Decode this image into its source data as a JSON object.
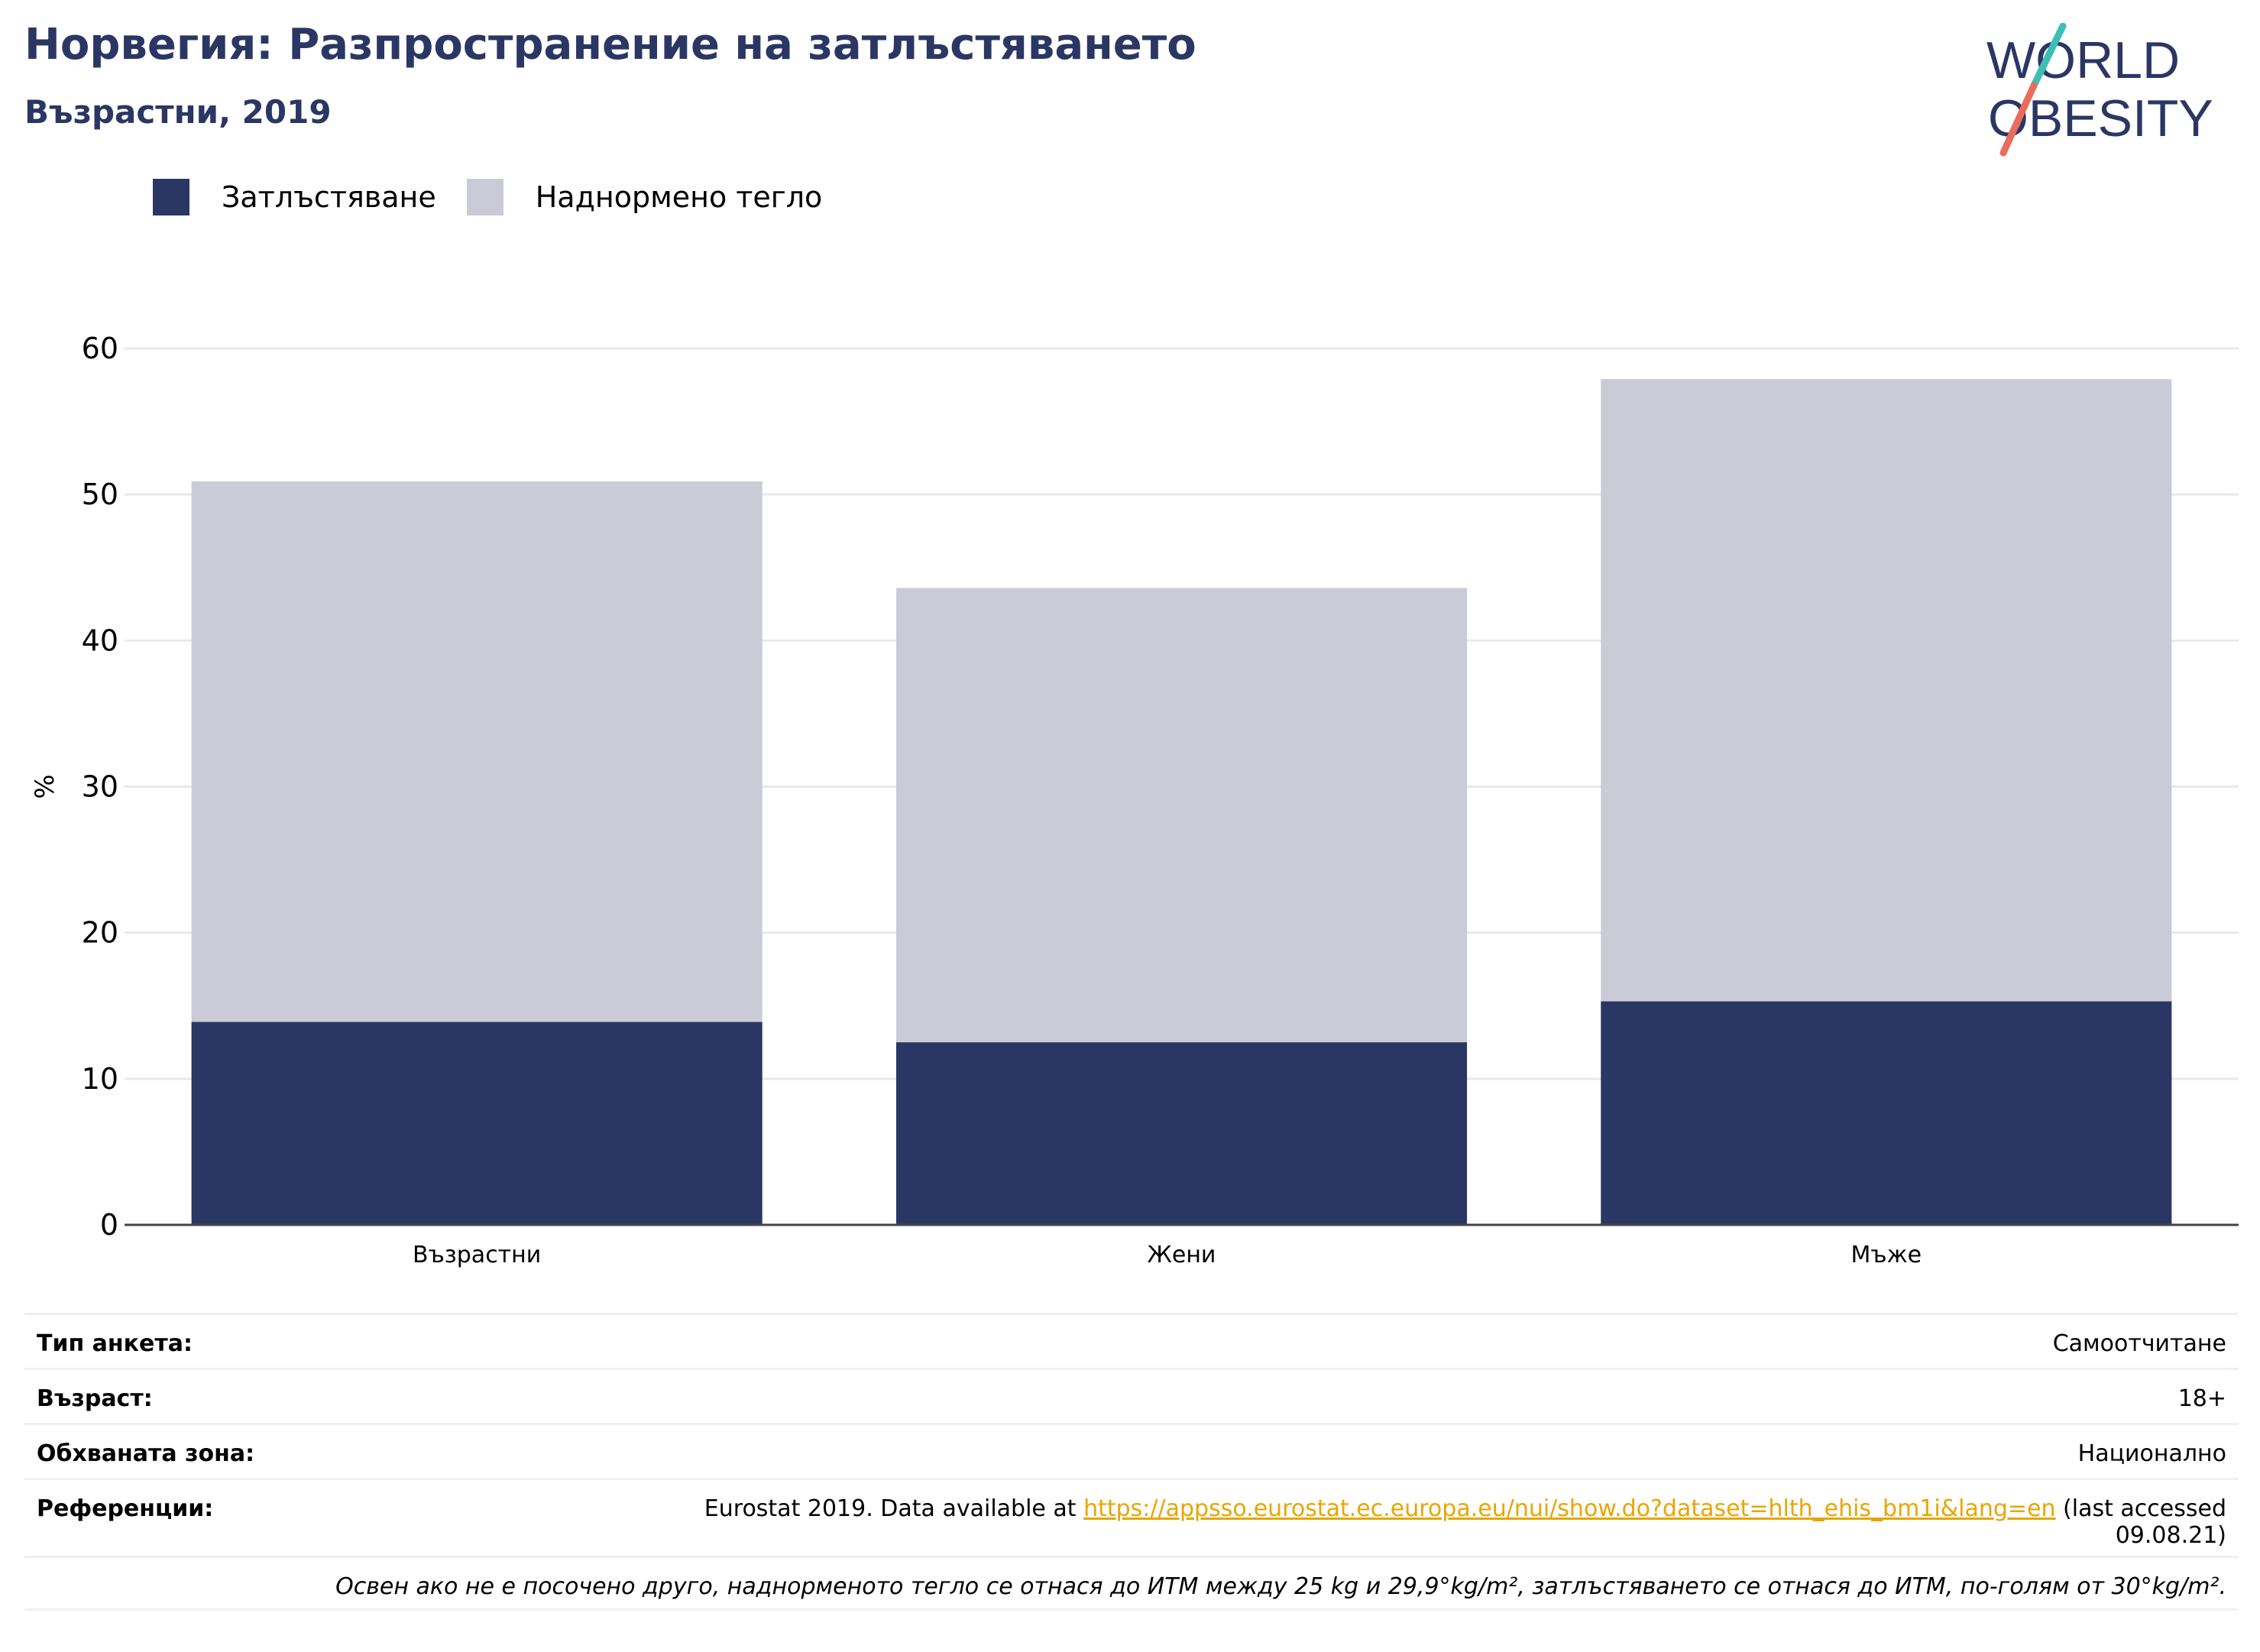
{
  "header": {
    "title": "Норвегия: Разпространение на затлъстяването",
    "subtitle": "Възрастни, 2019"
  },
  "logo": {
    "line1": "WORLD",
    "line2": "OBESITY",
    "colors": {
      "text": "#2a3764",
      "slash_top": "#3cbfb4",
      "slash_bottom": "#e96c5c"
    }
  },
  "legend": [
    {
      "label": "Затлъстяване",
      "color": "#2a3764"
    },
    {
      "label": "Наднормено тегло",
      "color": "#cacbd7"
    }
  ],
  "chart_data": {
    "type": "bar",
    "stacked": true,
    "categories": [
      "Възрастни",
      "Жени",
      "Мъже"
    ],
    "series": [
      {
        "name": "Затлъстяване",
        "values": [
          13.9,
          12.5,
          15.3
        ],
        "color": "#2a3764"
      },
      {
        "name": "Наднормено тегло",
        "values": [
          37.0,
          31.1,
          42.6
        ],
        "color": "#cacbd7"
      }
    ],
    "ylabel": "%",
    "ylim": [
      0,
      60
    ],
    "yticks": [
      0,
      10,
      20,
      30,
      40,
      50,
      60
    ],
    "grid": true
  },
  "info": {
    "rows": [
      {
        "label": "Тип анкета:",
        "value": "Самоотчитане"
      },
      {
        "label": "Възраст:",
        "value": "18+"
      },
      {
        "label": "Обхваната зона:",
        "value": "Национално"
      }
    ],
    "reference": {
      "label": "Референции:",
      "prefix": "Eurostat 2019. Data available at ",
      "link": "https://appsso.eurostat.ec.europa.eu/nui/show.do?dataset=hlth_ehis_bm1i&lang=en",
      "suffix_line1": " (last accessed",
      "suffix_line2": "09.08.21)"
    },
    "note": "Освен ако не е посочено друго, наднорменото тегло се отнася до ИТМ между 25 kg и 29,9°kg/m², затлъстяването се отнася до ИТМ, по-голям от 30°kg/m²."
  }
}
